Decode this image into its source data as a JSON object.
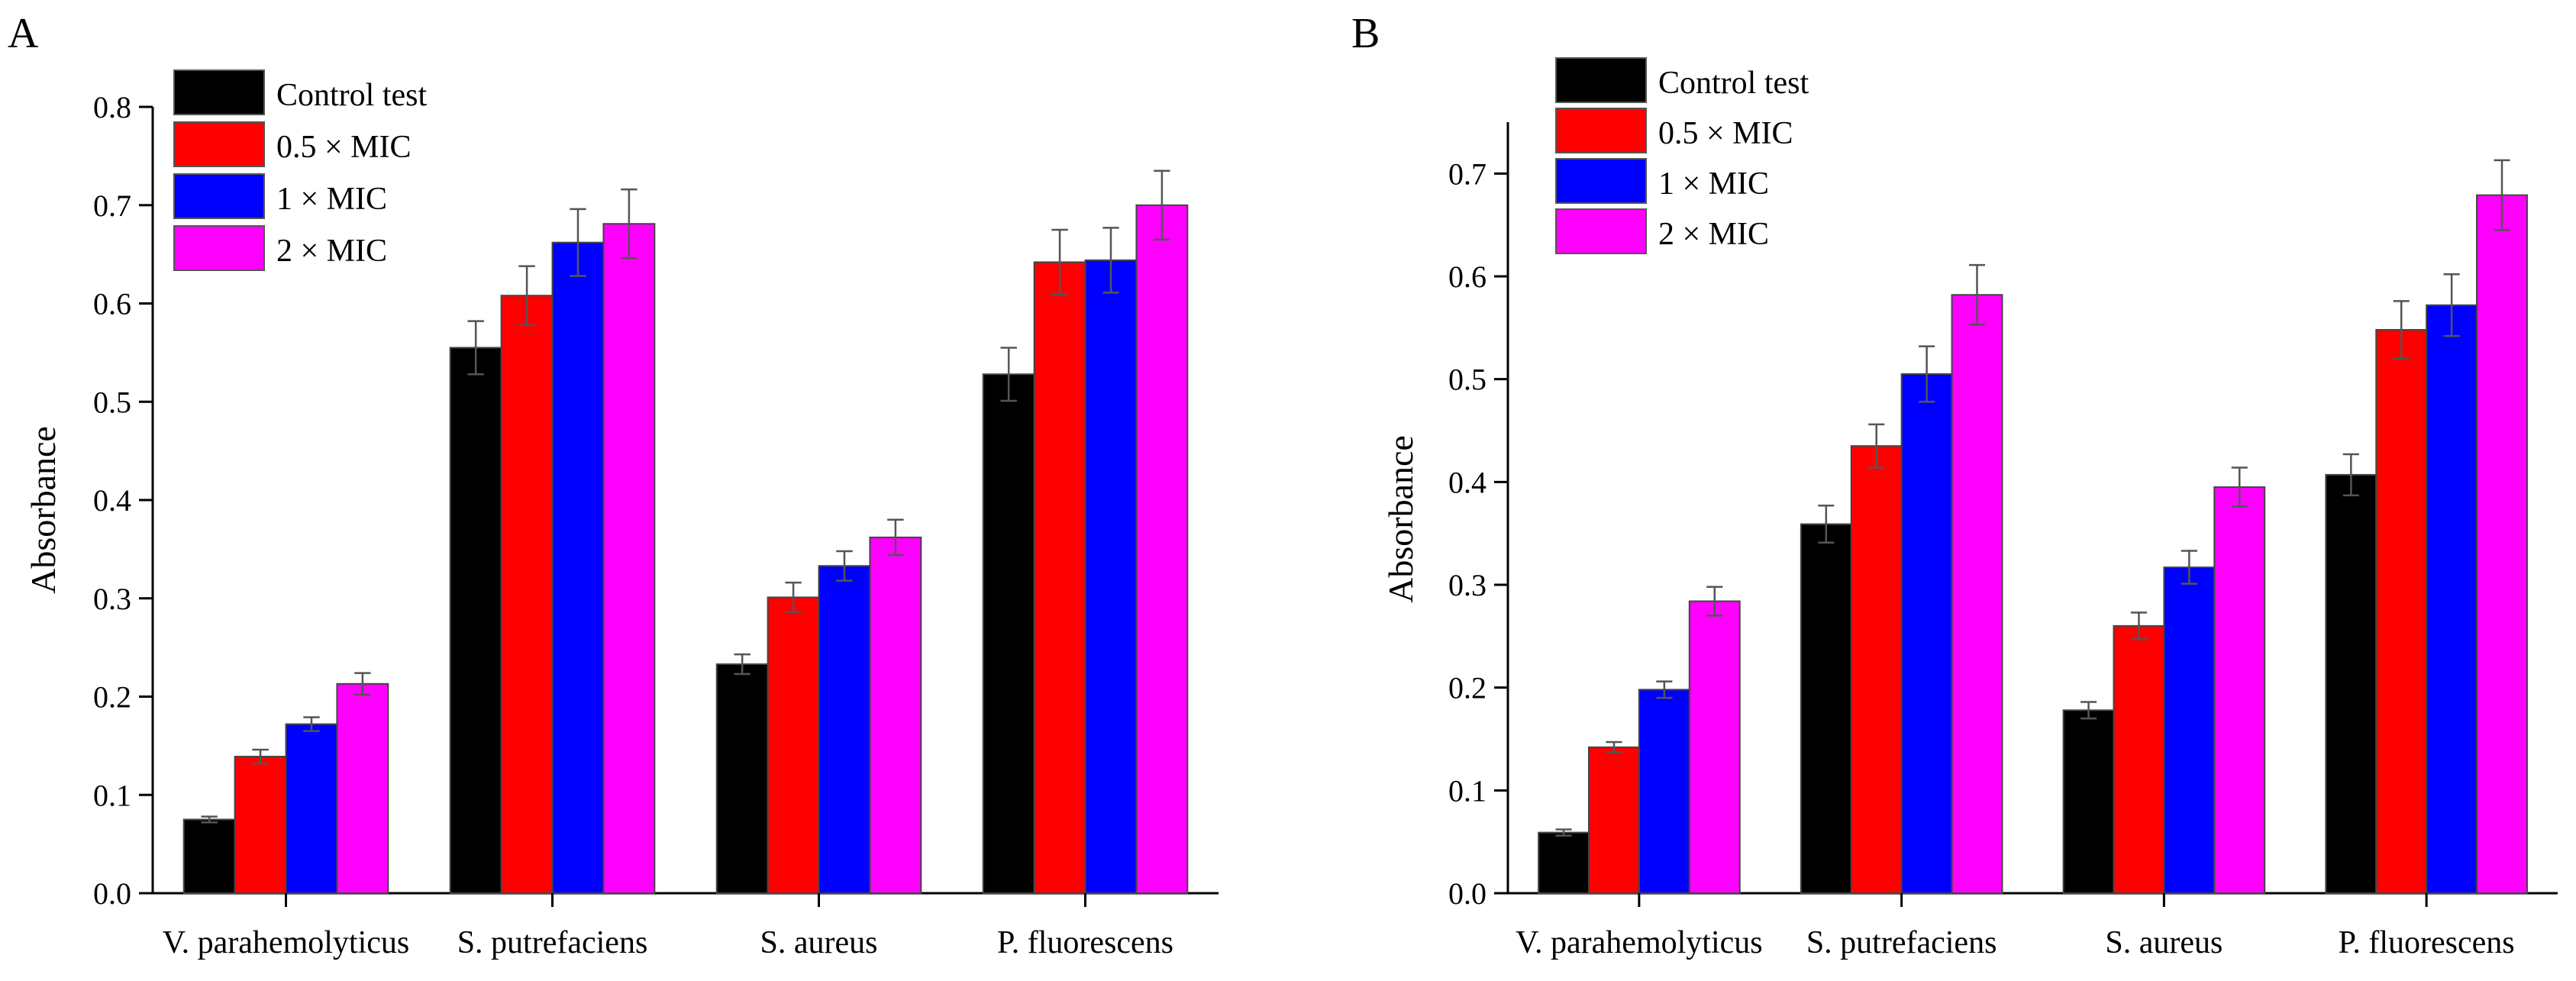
{
  "colors": {
    "control": "#000000",
    "half_mic": "#ff0000",
    "one_mic": "#0000ff",
    "two_mic": "#ff00ff"
  },
  "chart_data": [
    {
      "type": "bar",
      "panel_label": "A",
      "title": "",
      "xlabel": "",
      "ylabel": "Absorbance",
      "ylim": [
        0,
        0.8
      ],
      "yticks": [
        "0.0",
        "0.1",
        "0.2",
        "0.3",
        "0.4",
        "0.5",
        "0.6",
        "0.7",
        "0.8"
      ],
      "categories": [
        "V. parahemolyticus",
        "S. putrefaciens",
        "S. aureus",
        "P. fluorescens"
      ],
      "legend_position": "top-left",
      "series": [
        {
          "name": "Control test",
          "values": [
            0.075,
            0.555,
            0.233,
            0.528
          ],
          "errors": [
            0.003,
            0.027,
            0.01,
            0.027
          ]
        },
        {
          "name": "0.5 × MIC",
          "values": [
            0.139,
            0.608,
            0.301,
            0.642
          ],
          "errors": [
            0.007,
            0.03,
            0.015,
            0.033
          ]
        },
        {
          "name": "1 × MIC",
          "values": [
            0.172,
            0.662,
            0.333,
            0.644
          ],
          "errors": [
            0.007,
            0.034,
            0.015,
            0.033
          ]
        },
        {
          "name": "2 × MIC",
          "values": [
            0.213,
            0.681,
            0.362,
            0.7
          ],
          "errors": [
            0.011,
            0.035,
            0.018,
            0.035
          ]
        }
      ]
    },
    {
      "type": "bar",
      "panel_label": "B",
      "title": "",
      "xlabel": "",
      "ylabel": "Absorbance",
      "ylim": [
        0,
        0.75
      ],
      "yticks": [
        "0.0",
        "0.1",
        "0.2",
        "0.3",
        "0.4",
        "0.5",
        "0.6",
        "0.7"
      ],
      "categories": [
        "V. parahemolyticus",
        "S. putrefaciens",
        "S. aureus",
        "P. fluorescens"
      ],
      "legend_position": "top-left",
      "series": [
        {
          "name": "Control test",
          "values": [
            0.059,
            0.359,
            0.178,
            0.407
          ],
          "errors": [
            0.003,
            0.018,
            0.008,
            0.02
          ]
        },
        {
          "name": "0.5 × MIC",
          "values": [
            0.142,
            0.435,
            0.26,
            0.548
          ],
          "errors": [
            0.005,
            0.021,
            0.013,
            0.028
          ]
        },
        {
          "name": "1 × MIC",
          "values": [
            0.198,
            0.505,
            0.317,
            0.572
          ],
          "errors": [
            0.008,
            0.027,
            0.016,
            0.03
          ]
        },
        {
          "name": "2 × MIC",
          "values": [
            0.284,
            0.582,
            0.395,
            0.679
          ],
          "errors": [
            0.014,
            0.029,
            0.019,
            0.034
          ]
        }
      ]
    }
  ]
}
